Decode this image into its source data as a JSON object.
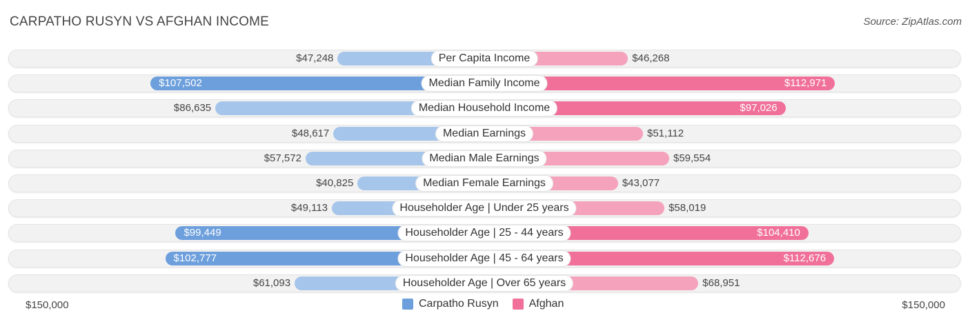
{
  "header": {
    "title": "CARPATHO RUSYN VS AFGHAN INCOME",
    "source": "Source: ZipAtlas.com"
  },
  "colors": {
    "left_light": "#a6c5ea",
    "left_strong": "#6c9fdc",
    "right_light": "#f5a3bd",
    "right_strong": "#f0709a"
  },
  "axis": {
    "left_label": "$150,000",
    "right_label": "$150,000"
  },
  "legend": {
    "left": "Carpatho Rusyn",
    "right": "Afghan"
  },
  "chart_data": {
    "type": "bar",
    "orientation": "horizontal-diverging",
    "title": "CARPATHO RUSYN VS AFGHAN INCOME",
    "xlim": [
      0,
      150000
    ],
    "categories": [
      "Per Capita Income",
      "Median Family Income",
      "Median Household Income",
      "Median Earnings",
      "Median Male Earnings",
      "Median Female Earnings",
      "Householder Age | Under 25 years",
      "Householder Age | 25 - 44 years",
      "Householder Age | 45 - 64 years",
      "Householder Age | Over 65 years"
    ],
    "series": [
      {
        "name": "Carpatho Rusyn",
        "values": [
          47248,
          107502,
          86635,
          48617,
          57572,
          40825,
          49113,
          99449,
          102777,
          61093
        ],
        "labels": [
          "$47,248",
          "$107,502",
          "$86,635",
          "$48,617",
          "$57,572",
          "$40,825",
          "$49,113",
          "$99,449",
          "$102,777",
          "$61,093"
        ]
      },
      {
        "name": "Afghan",
        "values": [
          46268,
          112971,
          97026,
          51112,
          59554,
          43077,
          58019,
          104410,
          112676,
          68951
        ],
        "labels": [
          "$46,268",
          "$112,971",
          "$97,026",
          "$51,112",
          "$59,554",
          "$43,077",
          "$58,019",
          "$104,410",
          "$112,676",
          "$68,951"
        ]
      }
    ]
  }
}
